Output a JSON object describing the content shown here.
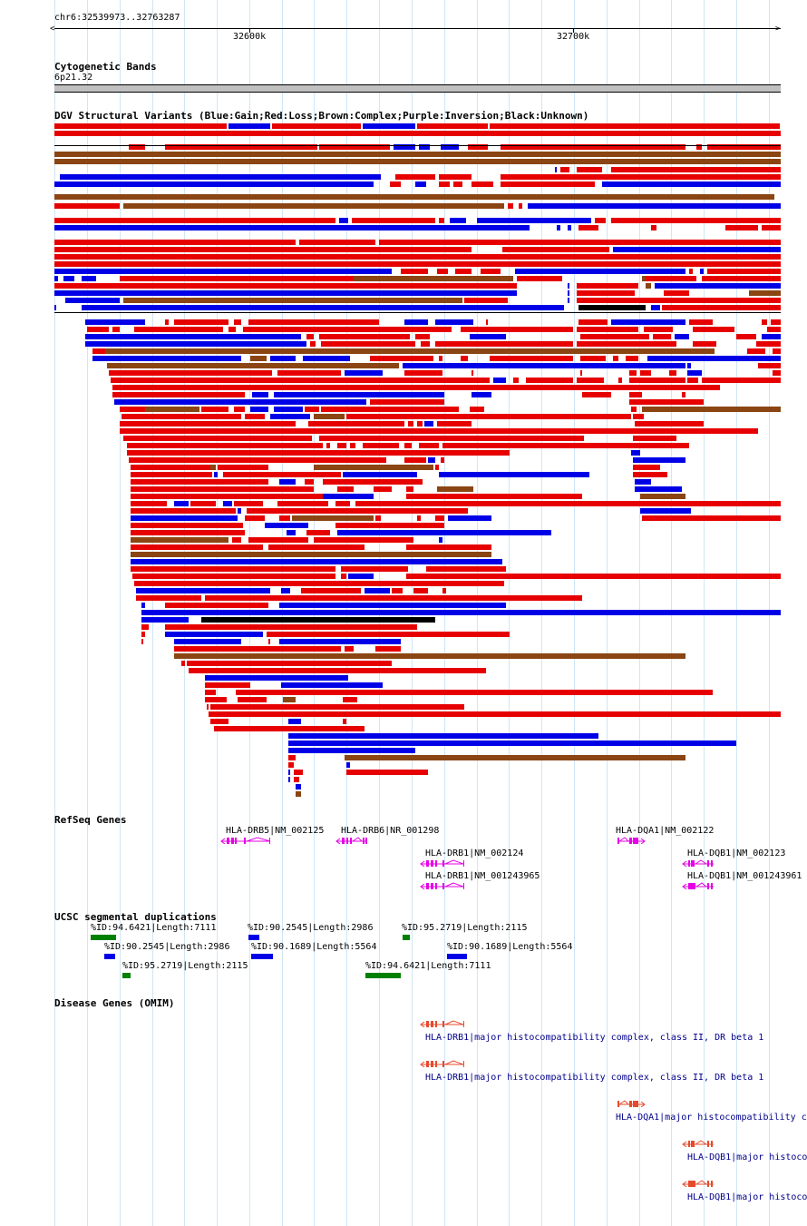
{
  "ruler": {
    "range": "chr6:32539973..32763287",
    "tick_a": "32600k",
    "tick_b": "32700k"
  },
  "cytoband": {
    "title": "Cytogenetic Bands",
    "band": "6p21.32"
  },
  "dgv": {
    "title": "DGV Structural Variants (Blue:Gain;Red:Loss;Brown:Complex;Purple:Inversion;Black:Unknown)",
    "colors": {
      "gain": "#0000e6",
      "loss": "#e60000",
      "complex": "#8b4513",
      "inversion": "#800080",
      "unknown": "#000000"
    }
  },
  "refseq": {
    "title": "RefSeq Genes",
    "color": "#e600e6",
    "genes": [
      "HLA-DRB5|NM_002125",
      "HLA-DRB6|NR_001298",
      "HLA-DQA1|NM_002122",
      "HLA-DRB1|NM_002124",
      "HLA-DQB1|NM_002123",
      "HLA-DRB1|NM_001243965",
      "HLA-DQB1|NM_001243961"
    ]
  },
  "segdup": {
    "title": "UCSC segmental duplications",
    "items": [
      "%ID:94.6421|Length:7111",
      "%ID:90.2545|Length:2986",
      "%ID:95.2719|Length:2115",
      "%ID:90.2545|Length:2986",
      "%ID:90.1689|Length:5564",
      "%ID:90.1689|Length:5564",
      "%ID:95.2719|Length:2115",
      "%ID:94.6421|Length:7111"
    ]
  },
  "omim": {
    "title": "Disease Genes (OMIM)",
    "color": "#e64b2d",
    "items": [
      "HLA-DRB1|major histocompatibility complex, class II, DR beta 1",
      "HLA-DRB1|major histocompatibility complex, class II, DR beta 1",
      "HLA-DQA1|major histocompatibility c",
      "HLA-DQB1|major histoco",
      "HLA-DQB1|major histoco"
    ]
  }
}
